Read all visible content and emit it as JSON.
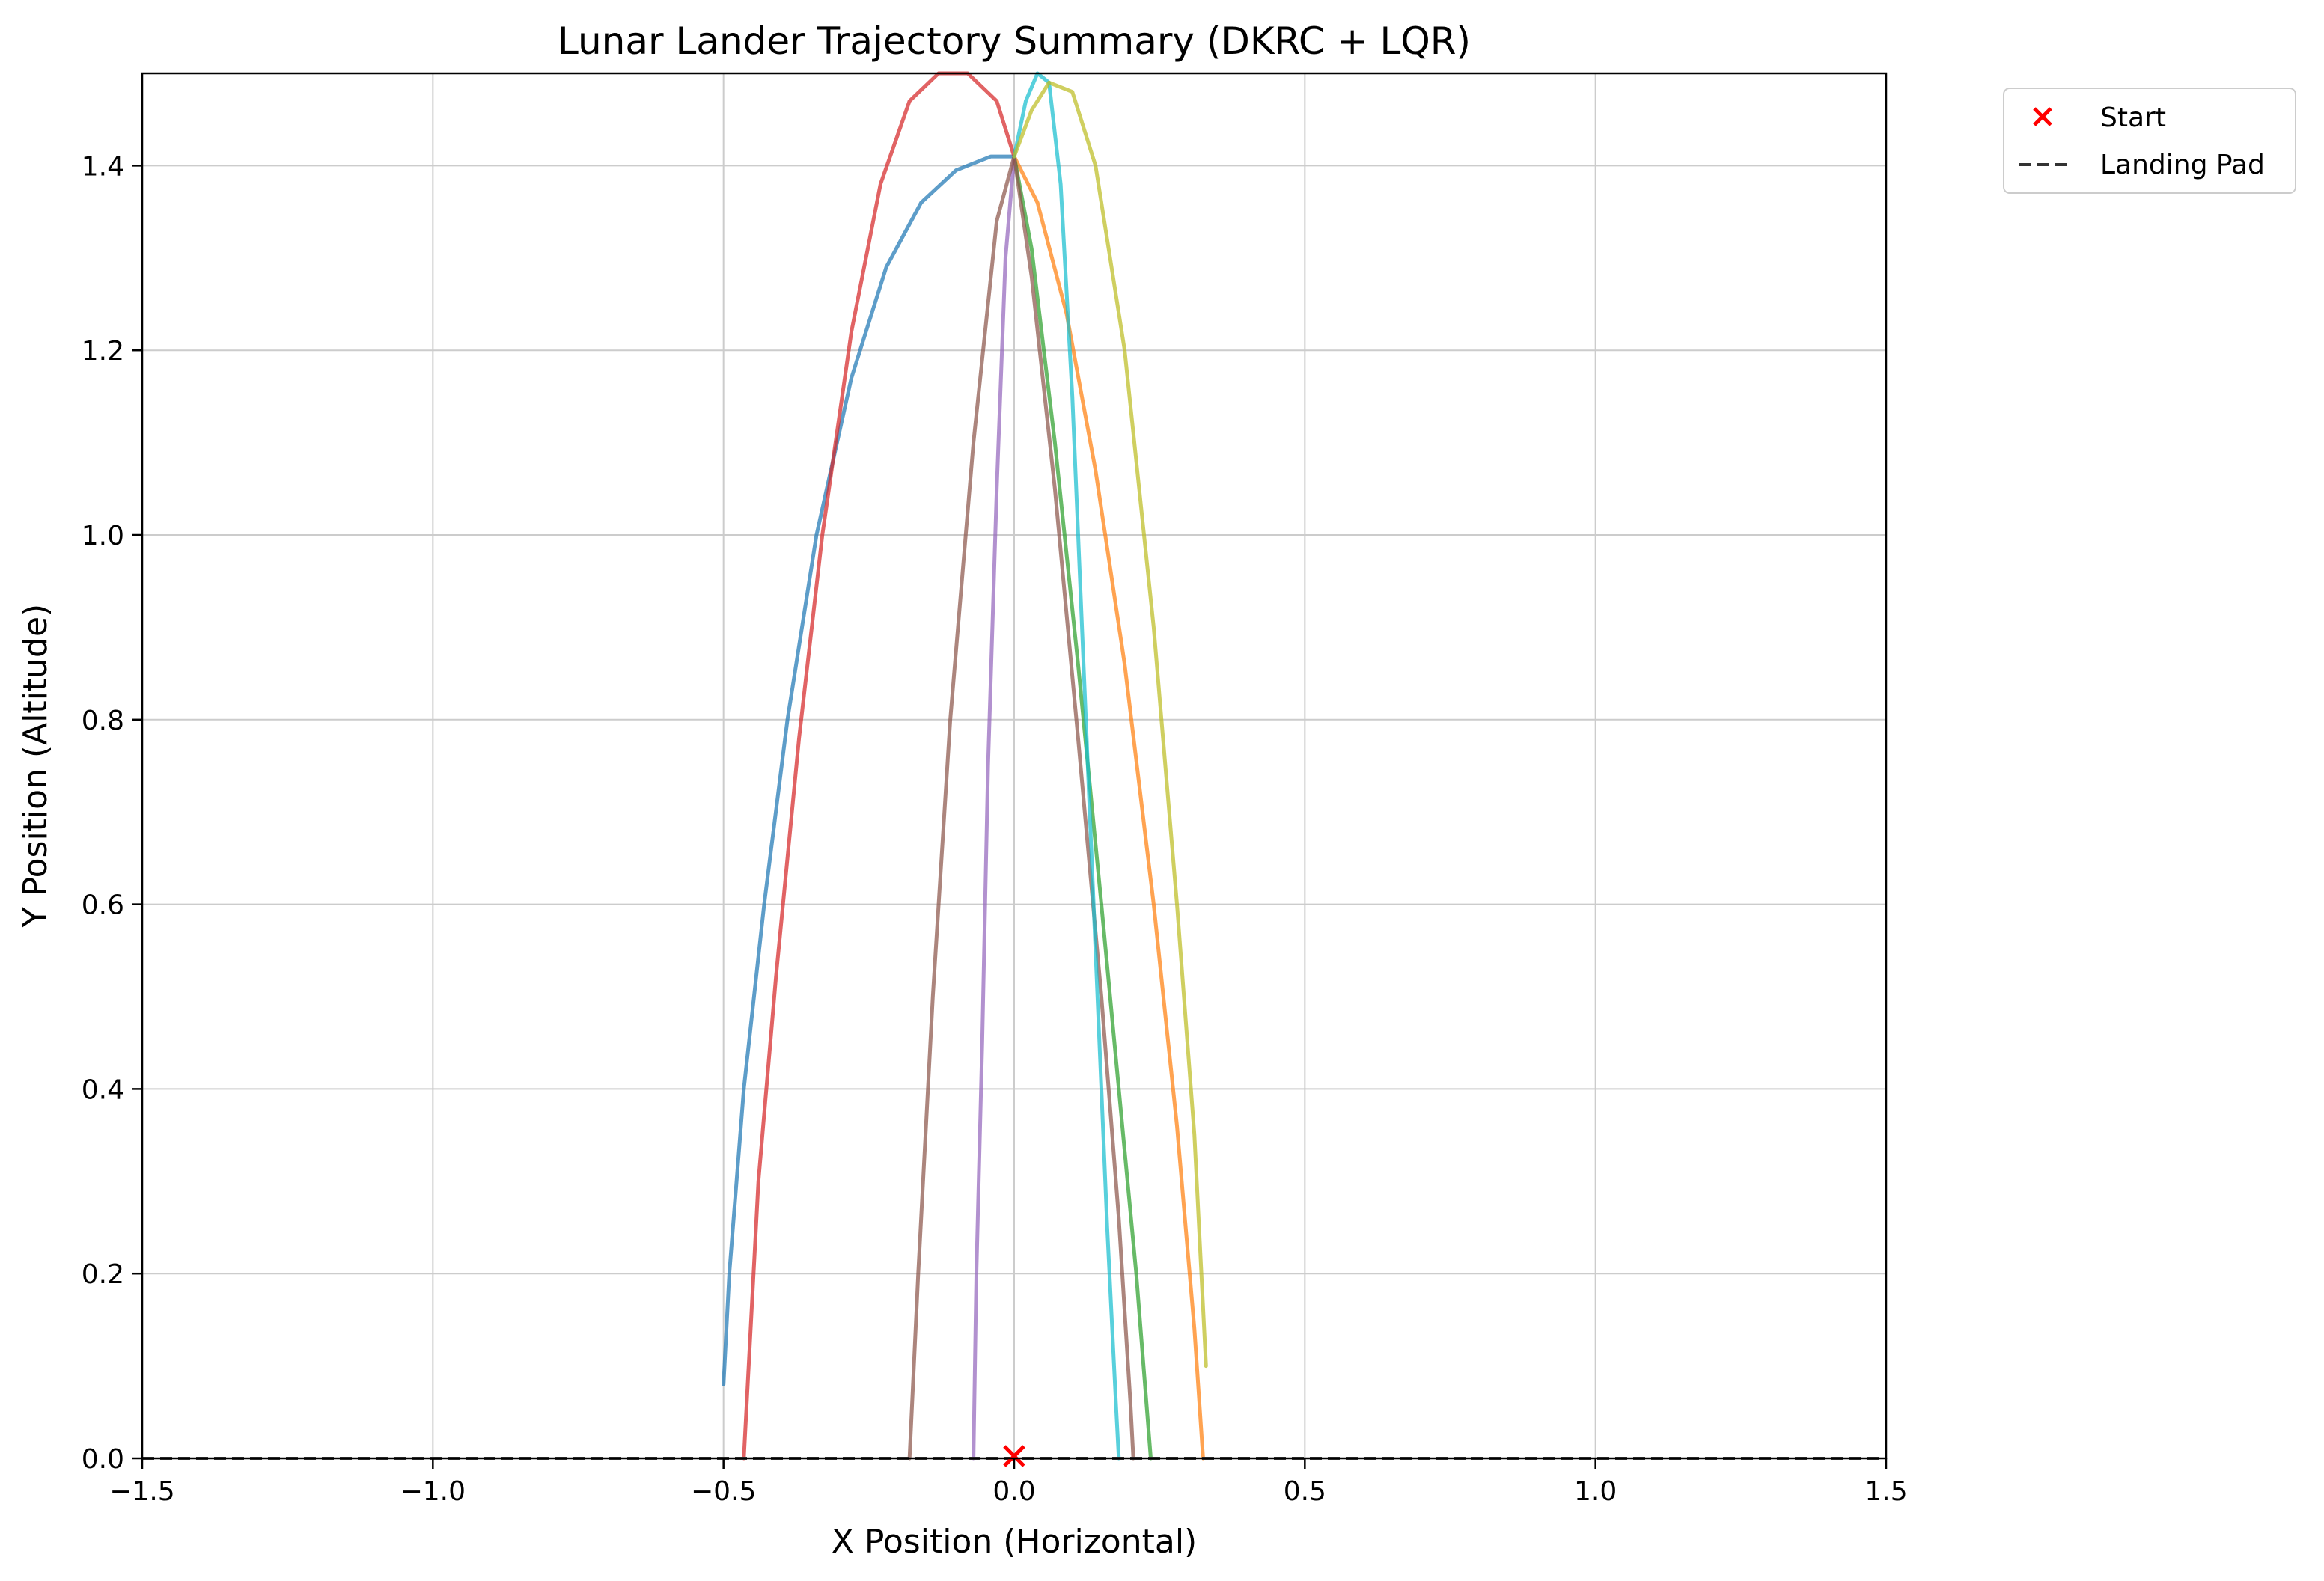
{
  "chart_data": {
    "type": "line",
    "title": "Lunar Lander Trajectory Summary (DKRC + LQR)",
    "xlabel": "X Position (Horizontal)",
    "ylabel": "Y Position (Altitude)",
    "xlim": [
      -1.5,
      1.5
    ],
    "ylim": [
      0.0,
      1.5
    ],
    "xticks": [
      -1.5,
      -1.0,
      -0.5,
      0.0,
      0.5,
      1.0,
      1.5
    ],
    "xtick_labels": [
      "−1.5",
      "−1.0",
      "−0.5",
      "0.0",
      "0.5",
      "1.0",
      "1.5"
    ],
    "yticks": [
      0.0,
      0.2,
      0.4,
      0.6,
      0.8,
      1.0,
      1.2,
      1.4
    ],
    "ytick_labels": [
      "0.0",
      "0.2",
      "0.4",
      "0.6",
      "0.8",
      "1.0",
      "1.2",
      "1.4"
    ],
    "grid": true,
    "legend": {
      "placement": "outside-top-right",
      "entries": [
        {
          "label": "Start",
          "marker": "x",
          "color": "#ff0000"
        },
        {
          "label": "Landing Pad",
          "line": "dashed",
          "color": "#333333"
        }
      ]
    },
    "start_point": {
      "x": 0.0,
      "y": 0.0,
      "color": "#ff0000"
    },
    "landing_pad": {
      "y": 0.0,
      "x_range": [
        -1.5,
        1.5
      ],
      "color": "#333333"
    },
    "series": [
      {
        "color": "#1f77b4",
        "points": [
          [
            0.0,
            1.41
          ],
          [
            -0.04,
            1.41
          ],
          [
            -0.1,
            1.395
          ],
          [
            -0.16,
            1.36
          ],
          [
            -0.22,
            1.29
          ],
          [
            -0.28,
            1.17
          ],
          [
            -0.34,
            1.0
          ],
          [
            -0.39,
            0.8
          ],
          [
            -0.43,
            0.6
          ],
          [
            -0.465,
            0.4
          ],
          [
            -0.49,
            0.2
          ],
          [
            -0.5,
            0.08
          ]
        ]
      },
      {
        "color": "#ff7f0e",
        "points": [
          [
            0.0,
            1.41
          ],
          [
            0.04,
            1.36
          ],
          [
            0.09,
            1.24
          ],
          [
            0.14,
            1.07
          ],
          [
            0.19,
            0.86
          ],
          [
            0.24,
            0.6
          ],
          [
            0.28,
            0.36
          ],
          [
            0.31,
            0.14
          ],
          [
            0.325,
            0.0
          ]
        ]
      },
      {
        "color": "#2ca02c",
        "points": [
          [
            0.0,
            1.41
          ],
          [
            0.03,
            1.31
          ],
          [
            0.07,
            1.1
          ],
          [
            0.11,
            0.86
          ],
          [
            0.15,
            0.6
          ],
          [
            0.18,
            0.4
          ],
          [
            0.21,
            0.2
          ],
          [
            0.235,
            0.0
          ]
        ]
      },
      {
        "color": "#d62728",
        "points": [
          [
            0.0,
            1.41
          ],
          [
            -0.03,
            1.47
          ],
          [
            -0.08,
            1.5
          ],
          [
            -0.13,
            1.5
          ],
          [
            -0.18,
            1.47
          ],
          [
            -0.23,
            1.38
          ],
          [
            -0.28,
            1.22
          ],
          [
            -0.33,
            1.0
          ],
          [
            -0.37,
            0.78
          ],
          [
            -0.41,
            0.52
          ],
          [
            -0.44,
            0.3
          ],
          [
            -0.465,
            0.0
          ]
        ]
      },
      {
        "color": "#9467bd",
        "points": [
          [
            0.0,
            1.41
          ],
          [
            -0.015,
            1.3
          ],
          [
            -0.03,
            1.05
          ],
          [
            -0.045,
            0.75
          ],
          [
            -0.055,
            0.45
          ],
          [
            -0.065,
            0.2
          ],
          [
            -0.07,
            0.0
          ]
        ]
      },
      {
        "color": "#8c564b",
        "points": [
          [
            0.0,
            1.41
          ],
          [
            -0.03,
            1.34
          ],
          [
            -0.07,
            1.1
          ],
          [
            -0.11,
            0.8
          ],
          [
            -0.14,
            0.5
          ],
          [
            -0.165,
            0.2
          ],
          [
            -0.18,
            0.0
          ]
        ]
      },
      {
        "color": "#8c564b",
        "points": [
          [
            0.0,
            1.41
          ],
          [
            0.03,
            1.28
          ],
          [
            0.07,
            1.05
          ],
          [
            0.11,
            0.78
          ],
          [
            0.15,
            0.5
          ],
          [
            0.18,
            0.26
          ],
          [
            0.2,
            0.06
          ],
          [
            0.205,
            0.0
          ]
        ]
      },
      {
        "color": "#17becf",
        "points": [
          [
            0.0,
            1.41
          ],
          [
            0.02,
            1.47
          ],
          [
            0.04,
            1.5
          ],
          [
            0.06,
            1.49
          ],
          [
            0.08,
            1.38
          ],
          [
            0.1,
            1.15
          ],
          [
            0.12,
            0.85
          ],
          [
            0.14,
            0.55
          ],
          [
            0.16,
            0.25
          ],
          [
            0.175,
            0.06
          ],
          [
            0.18,
            0.0
          ]
        ]
      },
      {
        "color": "#bcbd22",
        "points": [
          [
            0.0,
            1.41
          ],
          [
            0.03,
            1.46
          ],
          [
            0.06,
            1.49
          ],
          [
            0.1,
            1.48
          ],
          [
            0.14,
            1.4
          ],
          [
            0.19,
            1.2
          ],
          [
            0.24,
            0.9
          ],
          [
            0.28,
            0.6
          ],
          [
            0.31,
            0.35
          ],
          [
            0.33,
            0.1
          ]
        ]
      }
    ]
  }
}
